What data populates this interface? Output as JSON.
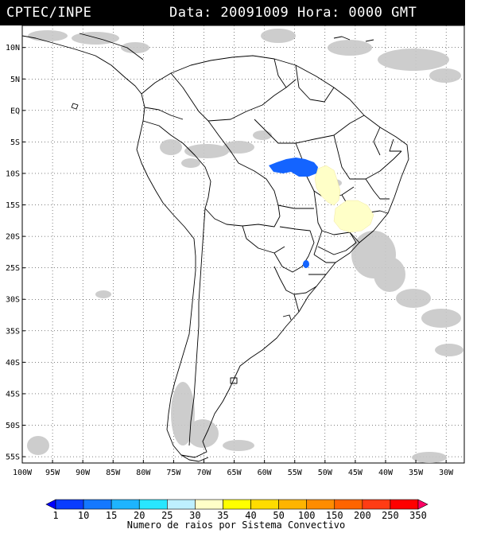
{
  "header": {
    "agency": "CPTEC/INPE",
    "datetime": "Data: 20091009 Hora: 0000 GMT"
  },
  "axes": {
    "lat_labels": [
      {
        "lat": 10,
        "text": "10N"
      },
      {
        "lat": 5,
        "text": "5N"
      },
      {
        "lat": 0,
        "text": "EQ"
      },
      {
        "lat": -5,
        "text": "5S"
      },
      {
        "lat": -10,
        "text": "10S"
      },
      {
        "lat": -15,
        "text": "15S"
      },
      {
        "lat": -20,
        "text": "20S"
      },
      {
        "lat": -25,
        "text": "25S"
      },
      {
        "lat": -30,
        "text": "30S"
      },
      {
        "lat": -35,
        "text": "35S"
      },
      {
        "lat": -40,
        "text": "40S"
      },
      {
        "lat": -45,
        "text": "45S"
      },
      {
        "lat": -50,
        "text": "50S"
      },
      {
        "lat": -55,
        "text": "55S"
      }
    ],
    "lon_labels": [
      {
        "lon": -100,
        "text": "100W"
      },
      {
        "lon": -95,
        "text": "95W"
      },
      {
        "lon": -90,
        "text": "90W"
      },
      {
        "lon": -85,
        "text": "85W"
      },
      {
        "lon": -80,
        "text": "80W"
      },
      {
        "lon": -75,
        "text": "75W"
      },
      {
        "lon": -70,
        "text": "70W"
      },
      {
        "lon": -65,
        "text": "65W"
      },
      {
        "lon": -60,
        "text": "60W"
      },
      {
        "lon": -55,
        "text": "55W"
      },
      {
        "lon": -50,
        "text": "50W"
      },
      {
        "lon": -45,
        "text": "45W"
      },
      {
        "lon": -40,
        "text": "40W"
      },
      {
        "lon": -35,
        "text": "35W"
      },
      {
        "lon": -30,
        "text": "30W"
      }
    ],
    "lon_range": [
      -100,
      -27
    ],
    "lat_range": [
      -56,
      13.5
    ],
    "grid": "dotted"
  },
  "colorbar": {
    "caption": "Numero de raios por Sistema Convectivo",
    "levels": [
      "1",
      "10",
      "15",
      "20",
      "25",
      "30",
      "35",
      "40",
      "50",
      "100",
      "150",
      "200",
      "250",
      "350"
    ],
    "colors": [
      "#0000ff",
      "#0a3cff",
      "#1478ff",
      "#1eb4ff",
      "#28e6ff",
      "#bef0ff",
      "#ffffc8",
      "#ffff00",
      "#ffdc00",
      "#ffb400",
      "#ff8c00",
      "#ff6400",
      "#ff3c14",
      "#ff0000",
      "#ff0064"
    ]
  },
  "lightning_systems": [
    {
      "name": "amazonas-blue-cluster",
      "color": "#1464ff",
      "level": "10-15"
    },
    {
      "name": "tocantins-pale-cluster",
      "color": "#ffffc8",
      "level": "35-40"
    },
    {
      "name": "minas-pale-cluster",
      "color": "#ffffc8",
      "level": "35-40"
    },
    {
      "name": "paraguay-blue-cluster",
      "color": "#1464ff",
      "level": "10-15"
    }
  ]
}
